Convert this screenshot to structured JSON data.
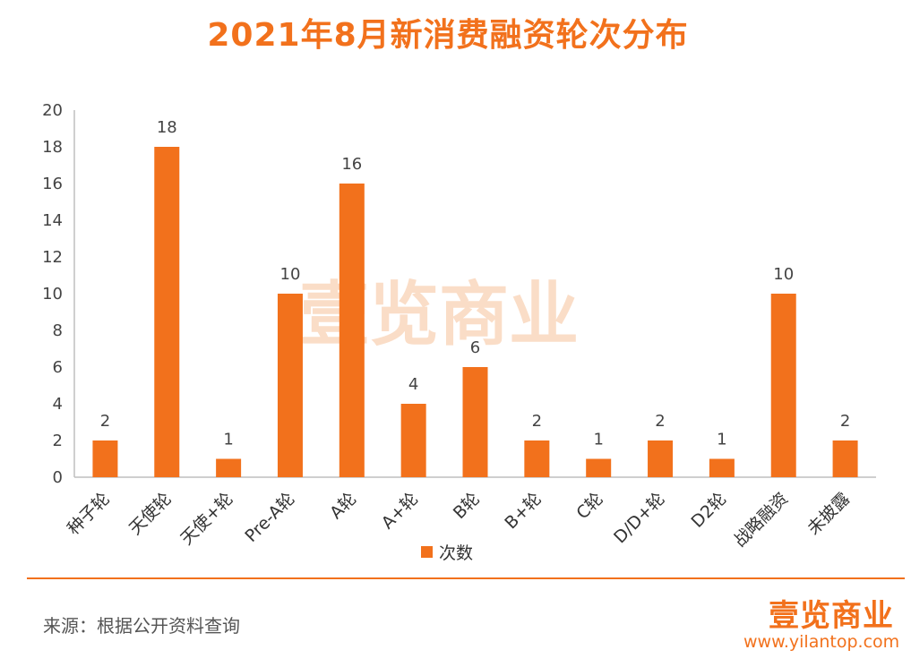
{
  "title": "2021年8月新消费融资轮次分布",
  "chart_data": {
    "type": "bar",
    "title": "2021年8月新消费融资轮次分布",
    "categories": [
      "种子轮",
      "天使轮",
      "天使+轮",
      "Pre-A轮",
      "A轮",
      "A+轮",
      "B轮",
      "B+轮",
      "C轮",
      "D/D+轮",
      "D2轮",
      "战略融资",
      "未披露"
    ],
    "series": [
      {
        "name": "次数",
        "values": [
          2,
          18,
          1,
          10,
          16,
          4,
          6,
          2,
          1,
          2,
          1,
          10,
          2
        ]
      }
    ],
    "ylim": [
      0,
      20
    ],
    "yticks": [
      0,
      2,
      4,
      6,
      8,
      10,
      12,
      14,
      16,
      18,
      20
    ],
    "xlabel": "",
    "ylabel": "",
    "legend_position": "bottom",
    "bar_color": "#f2711c"
  },
  "watermark": "壹览商业",
  "source": "来源：根据公开资料查询",
  "brand": {
    "logo": "壹览商业",
    "url": "www.yilantop.com"
  }
}
